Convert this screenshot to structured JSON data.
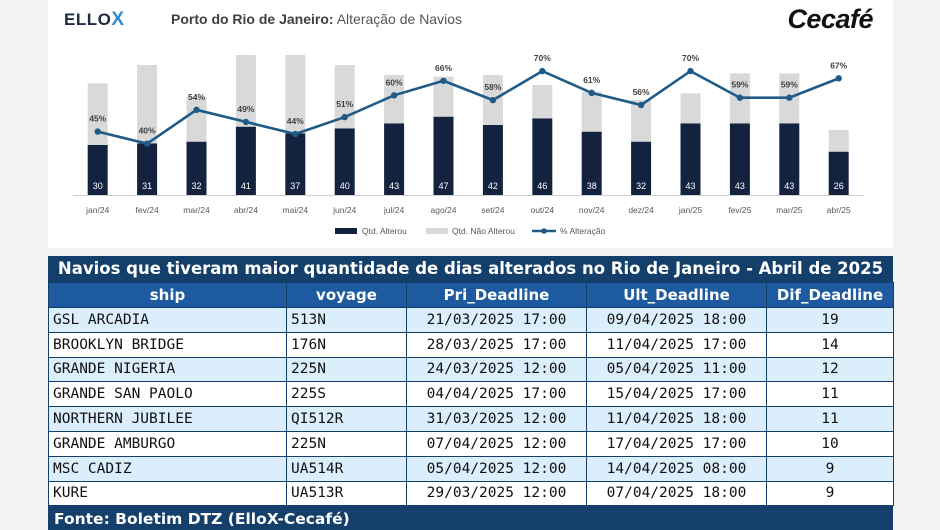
{
  "header": {
    "logo_left": "ELLO",
    "logo_left_x": "X",
    "title_bold": "Porto do Rio de Janeiro:",
    "title_rest": "Alteração de Navios",
    "logo_right": "Cecafé"
  },
  "chart_data": {
    "type": "bar",
    "stacked": true,
    "categories": [
      "jan/24",
      "fev/24",
      "mar/24",
      "abr/24",
      "mai/24",
      "jun/24",
      "jul/24",
      "ago/24",
      "set/24",
      "out/24",
      "nov/24",
      "dez/24",
      "jan/25",
      "fev/25",
      "mar/25",
      "abr/25"
    ],
    "series": [
      {
        "name": "Qtd. Alterou",
        "kind": "bar",
        "color": "#13233f",
        "values": [
          30,
          31,
          32,
          41,
          37,
          40,
          43,
          47,
          42,
          46,
          38,
          32,
          43,
          43,
          43,
          26
        ]
      },
      {
        "name": "Qtd. Não Alterou",
        "kind": "bar",
        "color": "#d9d9d9",
        "values": [
          37,
          47,
          27,
          43,
          47,
          38,
          29,
          24,
          30,
          20,
          24,
          25,
          18,
          30,
          30,
          13
        ]
      },
      {
        "name": "% Alteração",
        "kind": "line",
        "color": "#1f5b86",
        "values": [
          45,
          40,
          54,
          49,
          44,
          51,
          60,
          66,
          58,
          70,
          61,
          56,
          70,
          59,
          59,
          67
        ],
        "labels": [
          "45%",
          "40%",
          "54%",
          "49%",
          "44%",
          "51%",
          "60%",
          "66%",
          "58%",
          "70%",
          "61%",
          "56%",
          "70%",
          "59%",
          "59%",
          "67%"
        ]
      }
    ],
    "legend_position": "bottom",
    "grid": false
  },
  "table": {
    "title": "Navios que tiveram maior quantidade de dias alterados no Rio de Janeiro - Abril de 2025",
    "columns": [
      "ship",
      "voyage",
      "Pri_Deadline",
      "Ult_Deadline",
      "Dif_Deadline"
    ],
    "rows": [
      [
        "GSL ARCADIA",
        "513N",
        "21/03/2025 17:00",
        "09/04/2025 18:00",
        "19"
      ],
      [
        "BROOKLYN BRIDGE",
        "176N",
        "28/03/2025 17:00",
        "11/04/2025 17:00",
        "14"
      ],
      [
        "GRANDE NIGERIA",
        "225N",
        "24/03/2025 12:00",
        "05/04/2025 11:00",
        "12"
      ],
      [
        "GRANDE SAN PAOLO",
        "225S",
        "04/04/2025 17:00",
        "15/04/2025 17:00",
        "11"
      ],
      [
        "NORTHERN JUBILEE",
        "QI512R",
        "31/03/2025 12:00",
        "11/04/2025 18:00",
        "11"
      ],
      [
        "GRANDE AMBURGO",
        "225N",
        "07/04/2025 12:00",
        "17/04/2025 17:00",
        "10"
      ],
      [
        "MSC CADIZ",
        "UA514R",
        "05/04/2025 12:00",
        "14/04/2025 08:00",
        "9"
      ],
      [
        "KURE",
        "UA513R",
        "29/03/2025 12:00",
        "07/04/2025 18:00",
        "9"
      ]
    ],
    "source": "Fonte: Boletim DTZ (ElloX-Cecafé)"
  }
}
